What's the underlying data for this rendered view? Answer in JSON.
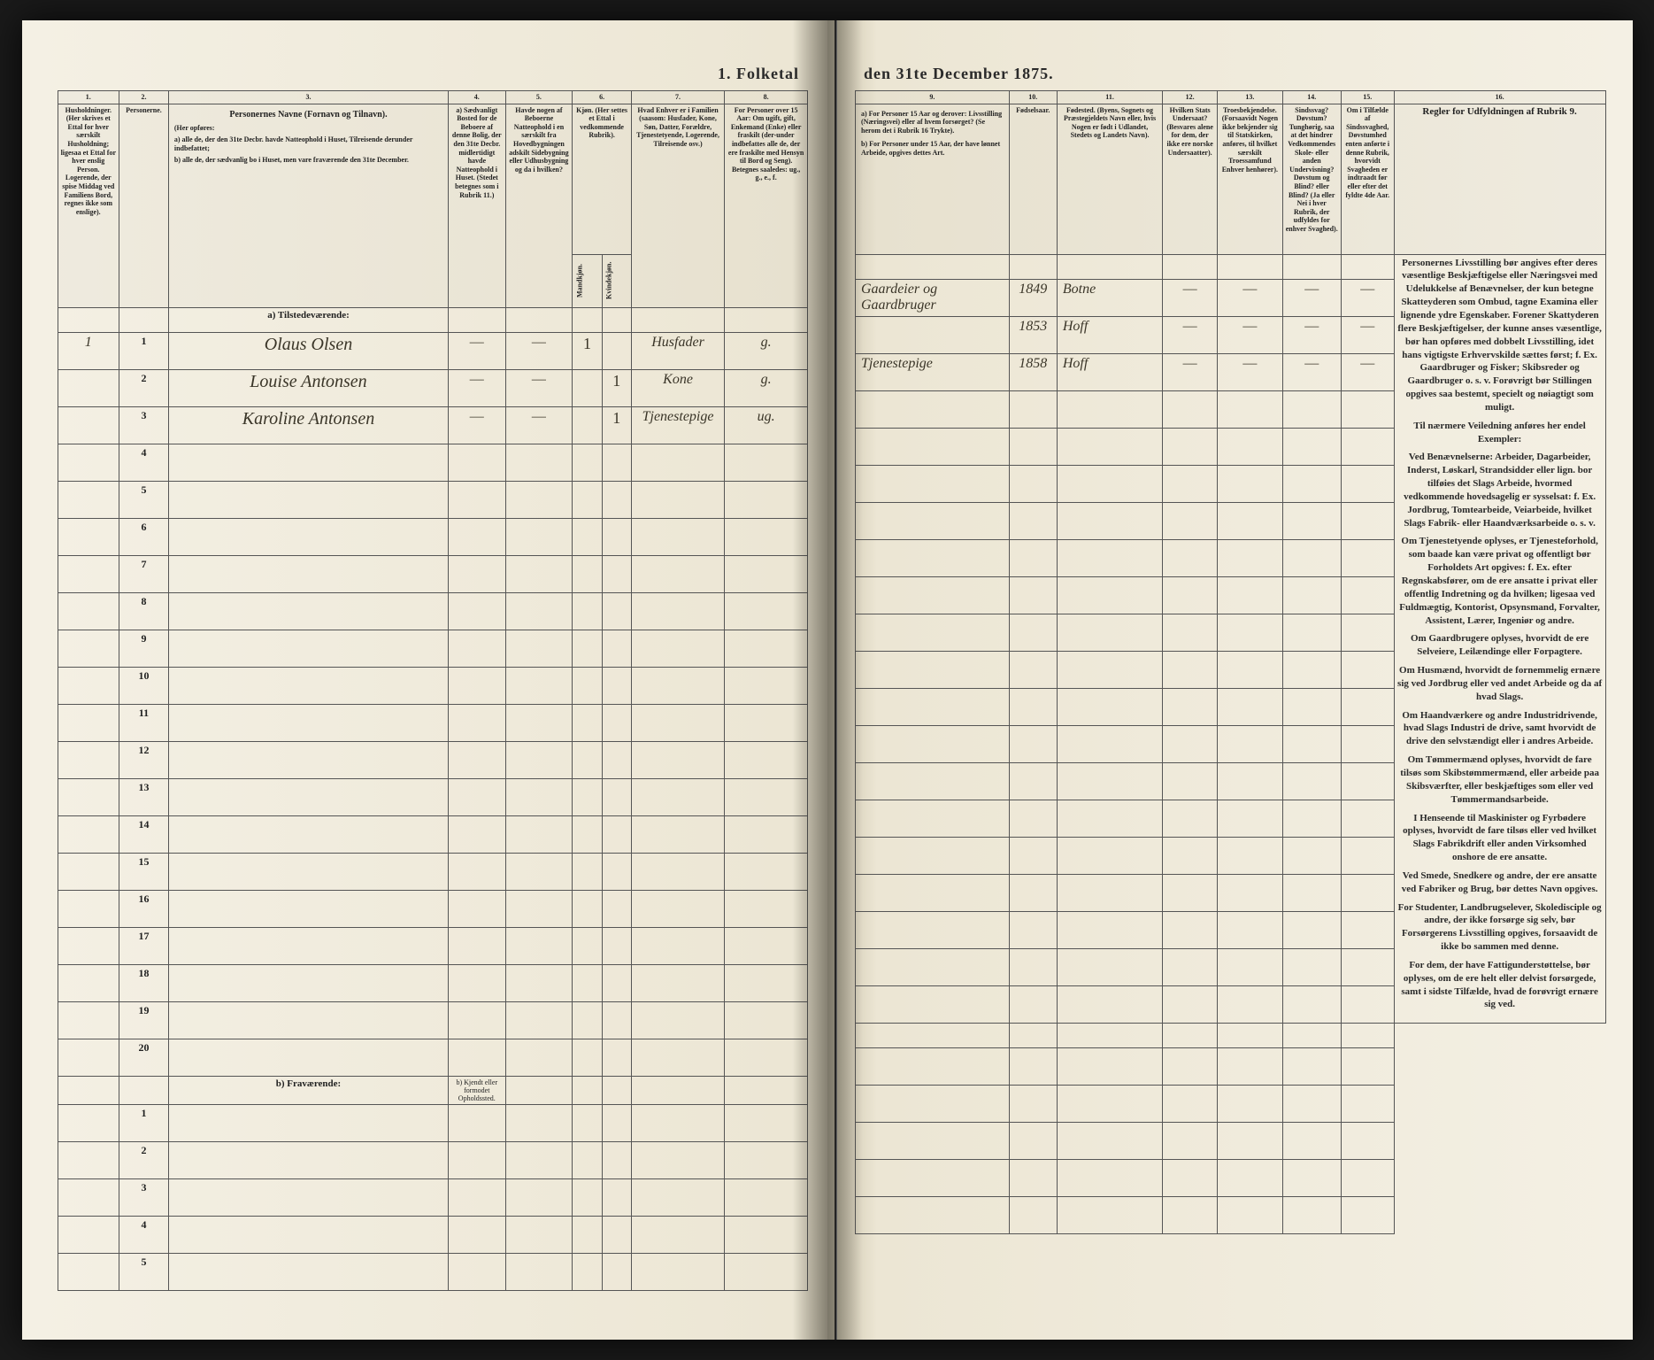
{
  "title_left": "1. Folketal",
  "title_right": "den 31te December 1875.",
  "columns_left": {
    "c1": "1.",
    "c2": "2.",
    "c3": "3.",
    "c4": "4.",
    "c5": "5.",
    "c6": "6.",
    "c7": "7.",
    "c8": "8."
  },
  "columns_right": {
    "c9": "9.",
    "c10": "10.",
    "c11": "11.",
    "c12": "12.",
    "c13": "13.",
    "c14": "14.",
    "c15": "15.",
    "c16": "16."
  },
  "headers_left": {
    "h1": "Husholdninger. (Her skrives et Ettal for hver særskilt Husholdning; ligesaa et Ettal for hver enslig Person. Logerende, der spise Middag ved Familiens Bord, regnes ikke som enslige).",
    "h2": "Personerne.",
    "h3_title": "Personernes Navne (Fornavn og Tilnavn).",
    "h3_sub": "(Her opføres:",
    "h3_a": "a) alle de, der den 31te Decbr. havde Natteophold i Huset, Tilreisende derunder indbefattet;",
    "h3_b": "b) alle de, der sædvanlig bo i Huset, men vare fraværende den 31te December.",
    "h4": "a) Sædvanligt Bosted for de Beboere af denne Bolig, der den 31te Decbr. midlertidigt havde Natteophold i Huset. (Stedet betegnes som i Rubrik 11.)",
    "h5": "Havde nogen af Beboerne Natteophold i en særskilt fra Hovedbygningen adskilt Sidebygning eller Udhusbygning og da i hvilken?",
    "h6_title": "Kjøn. (Her settes et Ettal i vedkommende Rubrik).",
    "h6_m": "Mandkjøn.",
    "h6_k": "Kvindekjøn.",
    "h7": "Hvad Enhver er i Familien (saasom: Husfader, Kone, Søn, Datter, Forældre, Tjenestetyende, Logerende, Tilreisende osv.)",
    "h8": "For Personer over 15 Aar: Om ugift, gift, Enkemand (Enke) eller fraskilt (der-under indbefattes alle de, der ere fraskilte med Hensyn til Bord og Seng). Betegnes saaledes: ug., g., e., f."
  },
  "headers_right": {
    "h9_a": "a) For Personer 15 Aar og derover: Livsstilling (Næringsvei) eller af hvem forsørget? (Se herom det i Rubrik 16 Trykte).",
    "h9_b": "b) For Personer under 15 Aar, der have lønnet Arbeide, opgives dettes Art.",
    "h10": "Fødselsaar.",
    "h11": "Fødested. (Byens, Sognets og Præstegjeldets Navn eller, hvis Nogen er født i Udlandet, Stedets og Landets Navn).",
    "h12": "Hvilken Stats Undersaat? (Besvares alene for dem, der ikke ere norske Undersaatter).",
    "h13": "Troesbekjendelse. (Forsaavidt Nogen ikke bekjender sig til Statskirken, anføres, til hvilket særskilt Troessamfund Enhver henhører).",
    "h14": "Sindssvag? Døvstum? Tunghørig, saa at det hindrer Vedkommendes Skole- eller anden Undervisning? Døvstum og Blind? eller Blind? (Ja eller Nei i hver Rubrik, der udfyldes for enhver Svaghed).",
    "h15": "Om i Tilfælde af Sindssvaghed, Døvstumhed enten anførte i denne Rubrik, hvorvidt Svagheden er indtraadt før eller efter det fyldte 4de Aar.",
    "h16_title": "Regler for Udfyldningen af Rubrik 9."
  },
  "section_a": "a) Tilstedeværende:",
  "section_b": "b) Fraværende:",
  "section_b_col4": "b) Kjendt eller formodet Opholdssted.",
  "household_mark": "1",
  "rows": [
    {
      "n": "1",
      "name": "Olaus Olsen",
      "c4": "—",
      "c5": "—",
      "m": "1",
      "k": "",
      "rel": "Husfader",
      "ms": "g.",
      "occ": "Gaardeier og Gaardbruger",
      "year": "1849",
      "place": "Botne"
    },
    {
      "n": "2",
      "name": "Louise Antonsen",
      "c4": "—",
      "c5": "—",
      "m": "",
      "k": "1",
      "rel": "Kone",
      "ms": "g.",
      "occ": "",
      "year": "1853",
      "place": "Hoff"
    },
    {
      "n": "3",
      "name": "Karoline Antonsen",
      "c4": "—",
      "c5": "—",
      "m": "",
      "k": "1",
      "rel": "Tjenestepige",
      "ms": "ug.",
      "occ": "Tjenestepige",
      "year": "1858",
      "place": "Hoff"
    }
  ],
  "empty_rows_a": [
    "4",
    "5",
    "6",
    "7",
    "8",
    "9",
    "10",
    "11",
    "12",
    "13",
    "14",
    "15",
    "16",
    "17",
    "18",
    "19",
    "20"
  ],
  "empty_rows_b": [
    "1",
    "2",
    "3",
    "4",
    "5"
  ],
  "sidebar": {
    "p1": "Personernes Livsstilling bør angives efter deres væsentlige Beskjæftigelse eller Næringsvei med Udelukkelse af Benævnelser, der kun betegne Skatteyderen som Ombud, tagne Examina eller lignende ydre Egenskaber. Forener Skattyderen flere Beskjæftigelser, der kunne anses væsentlige, bør han opføres med dobbelt Livsstilling, idet hans vigtigste Erhvervskilde sættes først; f. Ex. Gaardbruger og Fisker; Skibsreder og Gaardbruger o. s. v. Forøvrigt bør Stillingen opgives saa bestemt, specielt og nøiagtigt som muligt.",
    "p2": "Til nærmere Veiledning anføres her endel Exempler:",
    "p3": "Ved Benævnelserne: Arbeider, Dagarbeider, Inderst, Løskarl, Strandsidder eller lign. bor tilføies det Slags Arbeide, hvormed vedkommende hovedsagelig er sysselsat: f. Ex. Jordbrug, Tomtearbeide, Veiarbeide, hvilket Slags Fabrik- eller Haandværksarbeide o. s. v.",
    "p4": "Om Tjenestetyende oplyses, er Tjenesteforhold, som baade kan være privat og offentligt bør Forholdets Art opgives: f. Ex. efter Regnskabsfører, om de ere ansatte i privat eller offentlig Indretning og da hvilken; ligesaa ved Fuldmægtig, Kontorist, Opsynsmand, Forvalter, Assistent, Lærer, Ingeniør og andre.",
    "p5": "Om Gaardbrugere oplyses, hvorvidt de ere Selveiere, Leilændinge eller Forpagtere.",
    "p6": "Om Husmænd, hvorvidt de fornemmelig ernære sig ved Jordbrug eller ved andet Arbeide og da af hvad Slags.",
    "p7": "Om Haandværkere og andre Industridrivende, hvad Slags Industri de drive, samt hvorvidt de drive den selvstændigt eller i andres Arbeide.",
    "p8": "Om Tømmermænd oplyses, hvorvidt de fare tilsøs som Skibstømmermænd, eller arbeide paa Skibsværfter, eller beskjæftiges som eller ved Tømmermandsarbeide.",
    "p9": "I Henseende til Maskinister og Fyrbødere oplyses, hvorvidt de fare tilsøs eller ved hvilket Slags Fabrikdrift eller anden Virksomhed onshore de ere ansatte.",
    "p10": "Ved Smede, Snedkere og andre, der ere ansatte ved Fabriker og Brug, bør dettes Navn opgives.",
    "p11": "For Studenter, Landbrugselever, Skoledisciple og andre, der ikke forsørge sig selv, bør Forsørgerens Livsstilling opgives, forsaavidt de ikke bo sammen med denne.",
    "p12": "For dem, der have Fattigunderstøttelse, bør oplyses, om de ere helt eller delvist forsørgede, samt i sidste Tilfælde, hvad de forøvrigt ernære sig ved."
  }
}
